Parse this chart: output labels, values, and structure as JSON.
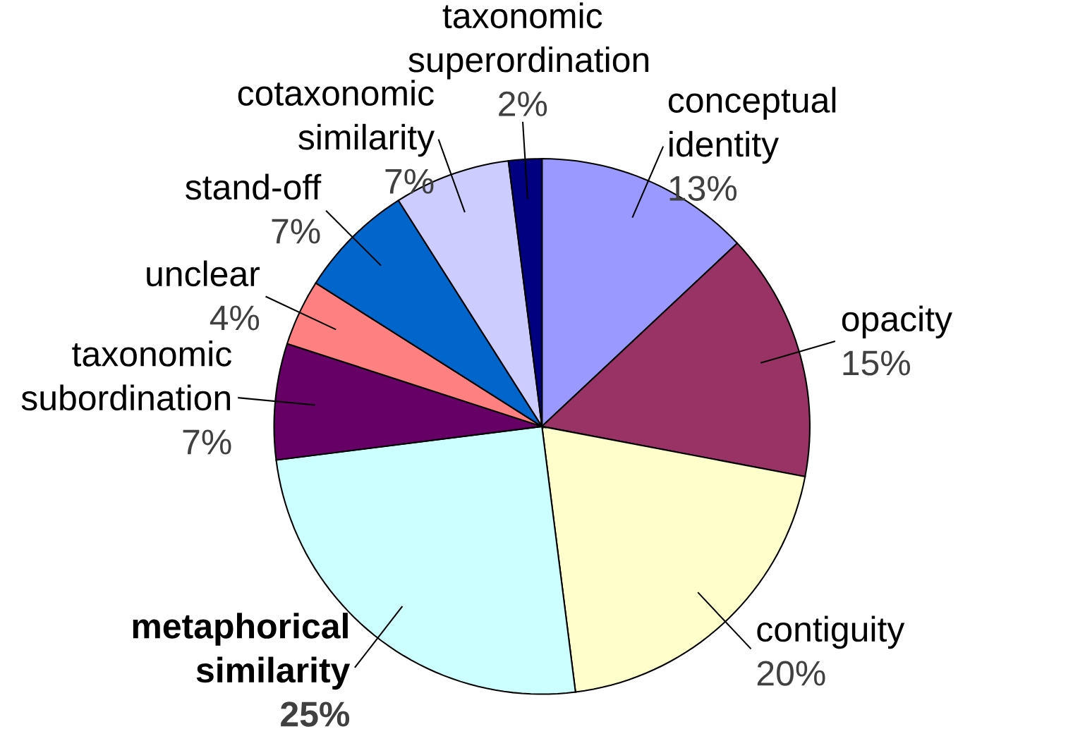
{
  "chart_data": {
    "type": "pie",
    "categories": [
      "conceptual identity",
      "opacity",
      "contiguity",
      "metaphorical similarity",
      "taxonomic subordination",
      "unclear",
      "stand-off",
      "cotaxonomic similarity",
      "taxonomic superordination"
    ],
    "values": [
      13,
      15,
      20,
      25,
      7,
      4,
      7,
      7,
      2
    ],
    "value_labels": [
      "13%",
      "15%",
      "20%",
      "25%",
      "7%",
      "4%",
      "7%",
      "7%",
      "2%"
    ],
    "colors": [
      "#9999ff",
      "#993366",
      "#ffffcc",
      "#ccffff",
      "#660066",
      "#ff8080",
      "#0066cc",
      "#ccccff",
      "#000080"
    ]
  }
}
